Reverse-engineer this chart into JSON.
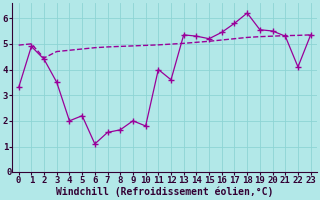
{
  "xlabel": "Windchill (Refroidissement éolien,°C)",
  "bg_color": "#b2e8e8",
  "line_color": "#990099",
  "x_data": [
    0,
    1,
    2,
    3,
    4,
    5,
    6,
    7,
    8,
    9,
    10,
    11,
    12,
    13,
    14,
    15,
    16,
    17,
    18,
    19,
    20,
    21,
    22,
    23
  ],
  "y_data": [
    3.3,
    4.9,
    4.4,
    3.5,
    2.0,
    2.2,
    1.1,
    1.55,
    1.65,
    2.0,
    1.8,
    4.0,
    3.6,
    5.35,
    5.3,
    5.2,
    5.45,
    5.8,
    6.2,
    5.55,
    5.5,
    5.3,
    4.1,
    5.35
  ],
  "trend_y": [
    4.95,
    5.0,
    4.45,
    4.7,
    4.75,
    4.8,
    4.85,
    4.88,
    4.9,
    4.92,
    4.94,
    4.96,
    4.99,
    5.02,
    5.06,
    5.1,
    5.15,
    5.2,
    5.25,
    5.28,
    5.3,
    5.32,
    5.33,
    5.35
  ],
  "xlim": [
    -0.5,
    23.5
  ],
  "ylim": [
    0,
    6.6
  ],
  "yticks": [
    1,
    2,
    3,
    4,
    5,
    6
  ],
  "xticks": [
    0,
    1,
    2,
    3,
    4,
    5,
    6,
    7,
    8,
    9,
    10,
    11,
    12,
    13,
    14,
    15,
    16,
    17,
    18,
    19,
    20,
    21,
    22,
    23
  ],
  "tick_label_size": 6.5,
  "xlabel_size": 7.0
}
